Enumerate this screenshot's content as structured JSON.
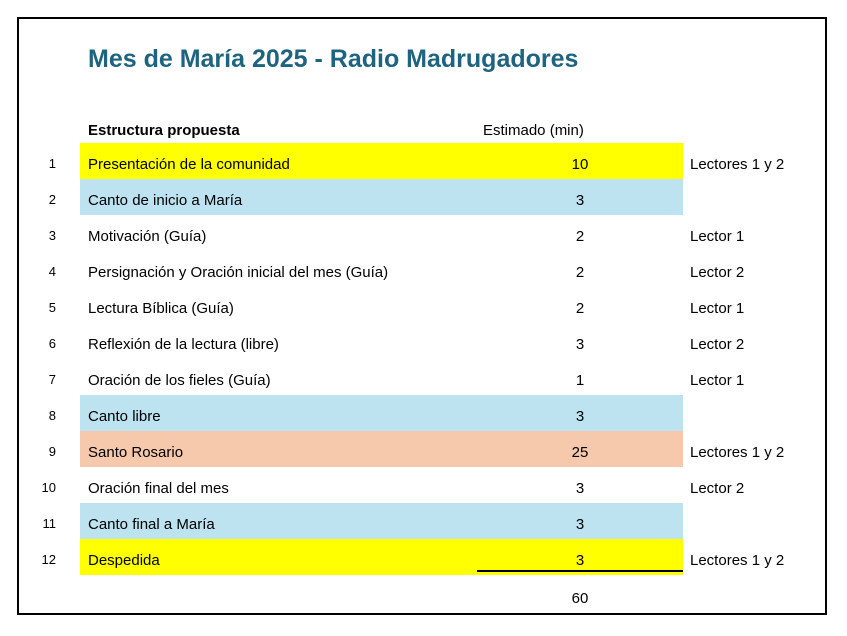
{
  "page": {
    "title": "Mes de María 2025 - Radio Madrugadores"
  },
  "table": {
    "header": {
      "estructura": "Estructura propuesta",
      "estimado": "Estimado (min)"
    },
    "rows": [
      {
        "num": "1",
        "item": "Presentación de la comunidad",
        "min": "10",
        "lector": "Lectores 1 y 2",
        "highlight": "yellow"
      },
      {
        "num": "2",
        "item": "Canto de inicio a María",
        "min": "3",
        "lector": "",
        "highlight": "blue"
      },
      {
        "num": "3",
        "item": "Motivación (Guía)",
        "min": "2",
        "lector": "Lector 1",
        "highlight": "none"
      },
      {
        "num": "4",
        "item": "Persignación y Oración inicial del mes (Guía)",
        "min": "2",
        "lector": "Lector 2",
        "highlight": "none"
      },
      {
        "num": "5",
        "item": "Lectura Bíblica (Guía)",
        "min": "2",
        "lector": "Lector 1",
        "highlight": "none"
      },
      {
        "num": "6",
        "item": "Reflexión de la lectura (libre)",
        "min": "3",
        "lector": "Lector 2",
        "highlight": "none"
      },
      {
        "num": "7",
        "item": "Oración de los fieles (Guía)",
        "min": "1",
        "lector": "Lector 1",
        "highlight": "none"
      },
      {
        "num": "8",
        "item": "Canto libre",
        "min": "3",
        "lector": "",
        "highlight": "blue"
      },
      {
        "num": "9",
        "item": "Santo Rosario",
        "min": "25",
        "lector": "Lectores 1 y 2",
        "highlight": "salmon"
      },
      {
        "num": "10",
        "item": "Oración final del mes",
        "min": "3",
        "lector": "Lector 2",
        "highlight": "none"
      },
      {
        "num": "11",
        "item": "Canto final a María",
        "min": "3",
        "lector": "",
        "highlight": "blue"
      },
      {
        "num": "12",
        "item": "Despedida",
        "min": "3",
        "lector": "Lectores 1 y 2",
        "highlight": "yellow"
      }
    ],
    "total": "60"
  },
  "colors": {
    "yellow": "#FFFF00",
    "blue": "#BDE3F1",
    "salmon": "#F6C9AC",
    "title": "#1E6480"
  }
}
